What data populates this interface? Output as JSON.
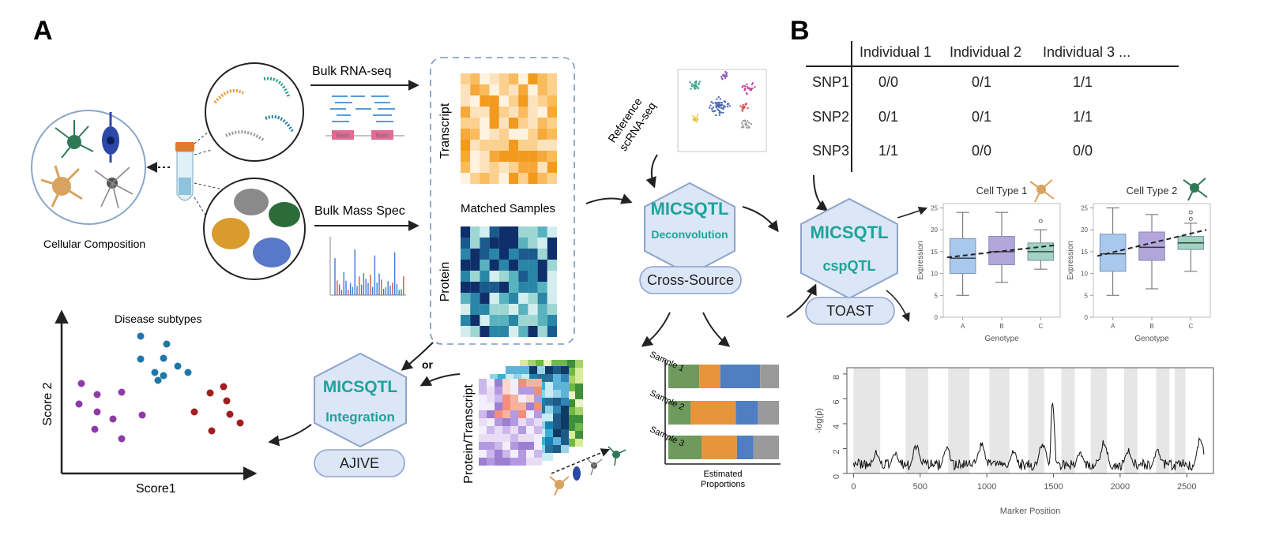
{
  "panels": {
    "a": "A",
    "b": "B"
  },
  "panel_a": {
    "cellular_composition": "Cellular Composition",
    "bulk_rna": "Bulk RNA-seq",
    "bulk_mass": "Bulk Mass Spec",
    "matched_samples": "Matched Samples",
    "transcript": "Transcript",
    "protein": "Protein",
    "reference": [
      "Reference",
      "scRNA-seq"
    ],
    "exon": "Exon",
    "deconv": {
      "title": "MICSQTL",
      "sub": "Deconvolution",
      "pill": "Cross-Source"
    },
    "integ": {
      "title": "MICSQTL",
      "sub": "Integration",
      "pill": "AJIVE"
    },
    "or": "or",
    "protein_transcript": "Protein/Transcript",
    "estimated": [
      "Estimated",
      "Proportions"
    ],
    "samples": [
      "Sample 1",
      "Sample 2",
      "Sample 3"
    ],
    "proportions": [
      [
        0.28,
        0.19,
        0.36,
        0.17
      ],
      [
        0.2,
        0.41,
        0.2,
        0.19
      ],
      [
        0.3,
        0.32,
        0.15,
        0.23
      ]
    ],
    "proportion_colors": [
      "#6e9a5e",
      "#e8943a",
      "#4f7ec1",
      "#9a9a9a"
    ],
    "scatter": {
      "title": "Disease subtypes",
      "xlabel": "Score1",
      "ylabel": "Score 2"
    }
  },
  "panel_b": {
    "table": {
      "columns": [
        "Individual 1",
        "Individual 2",
        "Individual 3 ..."
      ],
      "rows": [
        {
          "snp": "SNP1",
          "values": [
            "0/0",
            "0/1",
            "1/1"
          ]
        },
        {
          "snp": "SNP2",
          "values": [
            "0/1",
            "0/1",
            "1/1"
          ]
        },
        {
          "snp": "SNP3",
          "values": [
            "1/1",
            "0/0",
            "0/0"
          ]
        }
      ]
    },
    "cspqtl": {
      "title": "MICSQTL",
      "sub": "cspQTL",
      "pill": "TOAST"
    }
  },
  "chart_data": [
    {
      "type": "box",
      "title": "Cell Type 1",
      "xlabel": "Genotype",
      "ylabel": "Expression",
      "categories": [
        "A",
        "B",
        "C"
      ],
      "ylim": [
        0,
        26
      ],
      "yticks": [
        0,
        5,
        10,
        15,
        20,
        25
      ],
      "boxes": [
        {
          "min": 5,
          "q1": 10,
          "median": 13.5,
          "q3": 18,
          "max": 24
        },
        {
          "min": 8,
          "q1": 12,
          "median": 15,
          "q3": 18.5,
          "max": 24
        },
        {
          "min": 11,
          "q1": 13,
          "median": 15,
          "q3": 17,
          "max": 20,
          "outliers": [
            22
          ]
        }
      ],
      "trend": [
        13.7,
        16.5
      ],
      "colors": [
        "#a8c8ee",
        "#b3a6dc",
        "#9fd4c0"
      ]
    },
    {
      "type": "box",
      "title": "Cell Type 2",
      "xlabel": "Genotype",
      "ylabel": "Expression",
      "categories": [
        "A",
        "B",
        "C"
      ],
      "ylim": [
        0,
        26
      ],
      "yticks": [
        0,
        5,
        10,
        15,
        20,
        25
      ],
      "boxes": [
        {
          "min": 5,
          "q1": 10.5,
          "median": 14.5,
          "q3": 19,
          "max": 25
        },
        {
          "min": 6.5,
          "q1": 13,
          "median": 16,
          "q3": 19.5,
          "max": 23.5
        },
        {
          "min": 10.5,
          "q1": 15.5,
          "median": 17,
          "q3": 18.5,
          "max": 21.5,
          "outliers": [
            22.5,
            24
          ]
        }
      ],
      "trend": [
        14,
        20
      ],
      "colors": [
        "#a8c8ee",
        "#b3a6dc",
        "#9fd4c0"
      ]
    },
    {
      "type": "line",
      "title": "",
      "xlabel": "Marker Position",
      "ylabel": "-log(p)",
      "xlim": [
        -50,
        2700
      ],
      "ylim": [
        0,
        8.5
      ],
      "xticks": [
        0,
        500,
        1000,
        1500,
        2000,
        2500
      ],
      "yticks": [
        0,
        2,
        4,
        6,
        8
      ],
      "bands": [
        [
          0,
          200
        ],
        [
          390,
          560
        ],
        [
          710,
          870
        ],
        [
          1020,
          1170
        ],
        [
          1310,
          1430
        ],
        [
          1560,
          1660
        ],
        [
          1780,
          1900
        ],
        [
          2030,
          2130
        ],
        [
          2270,
          2370
        ],
        [
          2410,
          2490
        ]
      ],
      "peaks": [
        {
          "x": 170,
          "y": 1.9
        },
        {
          "x": 310,
          "y": 1.8
        },
        {
          "x": 470,
          "y": 2.4
        },
        {
          "x": 700,
          "y": 2.3
        },
        {
          "x": 960,
          "y": 2.6
        },
        {
          "x": 1200,
          "y": 2.0
        },
        {
          "x": 1420,
          "y": 2.8
        },
        {
          "x": 1495,
          "y": 6.9
        },
        {
          "x": 1700,
          "y": 1.9
        },
        {
          "x": 1880,
          "y": 2.8
        },
        {
          "x": 2060,
          "y": 2.1
        },
        {
          "x": 2280,
          "y": 2.0
        },
        {
          "x": 2600,
          "y": 3.0
        }
      ]
    }
  ]
}
